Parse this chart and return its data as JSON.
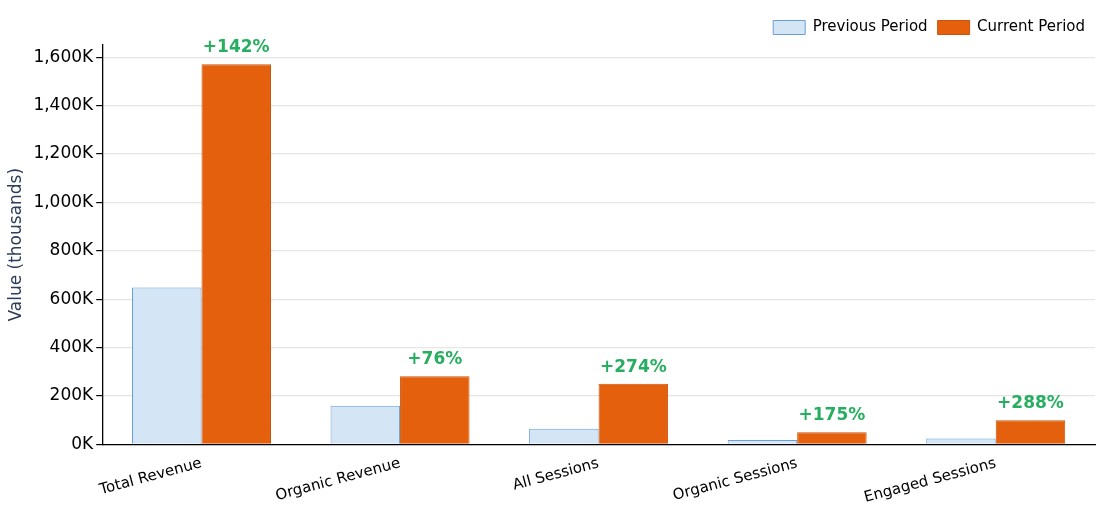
{
  "chart_data": {
    "type": "bar",
    "ylabel": "Value (thousands)",
    "categories": [
      "Total Revenue",
      "Organic Revenue",
      "All Sessions",
      "Organic Sessions",
      "Engaged Sessions"
    ],
    "series": [
      {
        "name": "Previous Period",
        "color": "#d4e6f5",
        "values": [
          648,
          160,
          65,
          18,
          25
        ]
      },
      {
        "name": "Current Period",
        "color": "#e5600c",
        "values": [
          1570,
          282,
          251,
          50,
          100
        ]
      }
    ],
    "ylim": [
      0,
      1650
    ],
    "yticks": [
      {
        "value": 0,
        "label": "0K"
      },
      {
        "value": 200,
        "label": "200K"
      },
      {
        "value": 400,
        "label": "400K"
      },
      {
        "value": 600,
        "label": "600K"
      },
      {
        "value": 800,
        "label": "800K"
      },
      {
        "value": 1000,
        "label": "1,000K"
      },
      {
        "value": 1200,
        "label": "1,200K"
      },
      {
        "value": 1400,
        "label": "1,400K"
      },
      {
        "value": 1600,
        "label": "1,600K"
      }
    ],
    "annotations": [
      {
        "text": "+142%",
        "x": "Total Revenue",
        "y": 1570
      },
      {
        "text": "+76%",
        "x": "Organic Revenue",
        "y": 282
      },
      {
        "text": "+274%",
        "x": "All Sessions",
        "y": 251
      },
      {
        "text": "+175%",
        "x": "Organic Sessions",
        "y": 50
      },
      {
        "text": "+288%",
        "x": "Engaged Sessions",
        "y": 100
      }
    ],
    "grid": "y",
    "legend": "top right"
  }
}
